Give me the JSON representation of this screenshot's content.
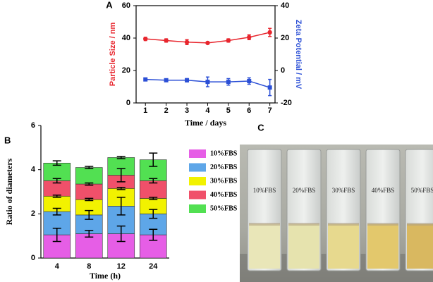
{
  "chart_data": [
    {
      "type": "line",
      "panel_label": "A",
      "xlabel": "Time / days",
      "ylabel": "Particle Size / nm",
      "y2label": "Zeta Potential / mV",
      "x": [
        1,
        2,
        3,
        4,
        5,
        6,
        7
      ],
      "xlim": [
        0.55,
        7.25
      ],
      "xticks": [
        1,
        2,
        3,
        4,
        5,
        6,
        7
      ],
      "ylim": [
        0,
        60
      ],
      "yticks": [
        0,
        20,
        40,
        60
      ],
      "y2lim": [
        -20,
        40
      ],
      "y2ticks": [
        -20,
        0,
        20,
        40
      ],
      "series": [
        {
          "name": "Particle Size",
          "color": "#e8262e",
          "marker": "circle",
          "values": [
            39.5,
            38.5,
            37.5,
            37,
            38.5,
            40.5,
            43.5
          ],
          "errors": [
            1,
            1,
            1.5,
            0.5,
            1,
            1.5,
            2.5
          ]
        },
        {
          "name": "Zeta Potential",
          "color": "#2b4fd6",
          "marker": "square",
          "axis": "y2",
          "values": [
            -5.5,
            -6,
            -6,
            -7,
            -7,
            -6.5,
            -10.5
          ],
          "errors": [
            0.5,
            0.5,
            1,
            3,
            2,
            2,
            5
          ]
        }
      ]
    },
    {
      "type": "bar",
      "stacked": true,
      "panel_label": "B",
      "xlabel": "Time (h)",
      "ylabel": "Ratio of diameters",
      "categories": [
        "4",
        "8",
        "12",
        "24"
      ],
      "ylim": [
        0,
        6
      ],
      "yticks": [
        0,
        2,
        4,
        6
      ],
      "series": [
        {
          "name": "10%FBS",
          "color": "#e65ee6",
          "values": [
            1.05,
            1.1,
            1.1,
            1.05
          ],
          "errors": [
            0.3,
            0.15,
            0.35,
            0.25
          ]
        },
        {
          "name": "20%FBS",
          "color": "#5ea6e8",
          "values": [
            1.05,
            0.85,
            1.25,
            0.95
          ],
          "errors": [
            0.15,
            0.2,
            0.4,
            0.2
          ]
        },
        {
          "name": "30%FBS",
          "color": "#f2f200",
          "values": [
            0.7,
            0.7,
            0.8,
            0.7
          ],
          "errors": [
            0.05,
            0.05,
            0.05,
            0.05
          ]
        },
        {
          "name": "40%FBS",
          "color": "#f0506a",
          "values": [
            0.7,
            0.7,
            0.6,
            0.8
          ],
          "errors": [
            0.1,
            0.05,
            0.3,
            0.1
          ]
        },
        {
          "name": "50%FBS",
          "color": "#52e052",
          "values": [
            0.8,
            0.75,
            0.8,
            0.95
          ],
          "errors": [
            0.1,
            0.05,
            0.05,
            0.3
          ]
        }
      ]
    }
  ],
  "panel_c": {
    "panel_label": "C",
    "cuvette_labels": [
      "10%FBS",
      "20%FBS",
      "30%FBS",
      "40%FBS",
      "50%FBS"
    ]
  }
}
